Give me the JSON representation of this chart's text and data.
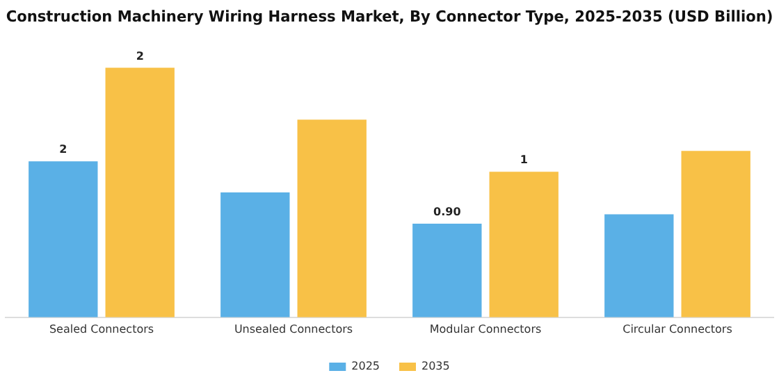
{
  "chart_data": {
    "type": "bar",
    "title": "Construction Machinery Wiring Harness Market, By Connector Type, 2025-2035 (USD Billion)",
    "categories": [
      "Sealed Connectors",
      "Unsealed Connectors",
      "Modular Connectors",
      "Circular Connectors"
    ],
    "series": [
      {
        "name": "2025",
        "color": "#5ab0e6",
        "values": [
          1.5,
          1.2,
          0.9,
          0.99
        ],
        "value_labels": [
          "2",
          null,
          "0.90",
          null
        ]
      },
      {
        "name": "2035",
        "color": "#f8c147",
        "values": [
          2.4,
          1.9,
          1.4,
          1.6
        ],
        "value_labels": [
          "2",
          null,
          "1",
          null
        ]
      }
    ],
    "legend": "bottom",
    "grid": false
  }
}
